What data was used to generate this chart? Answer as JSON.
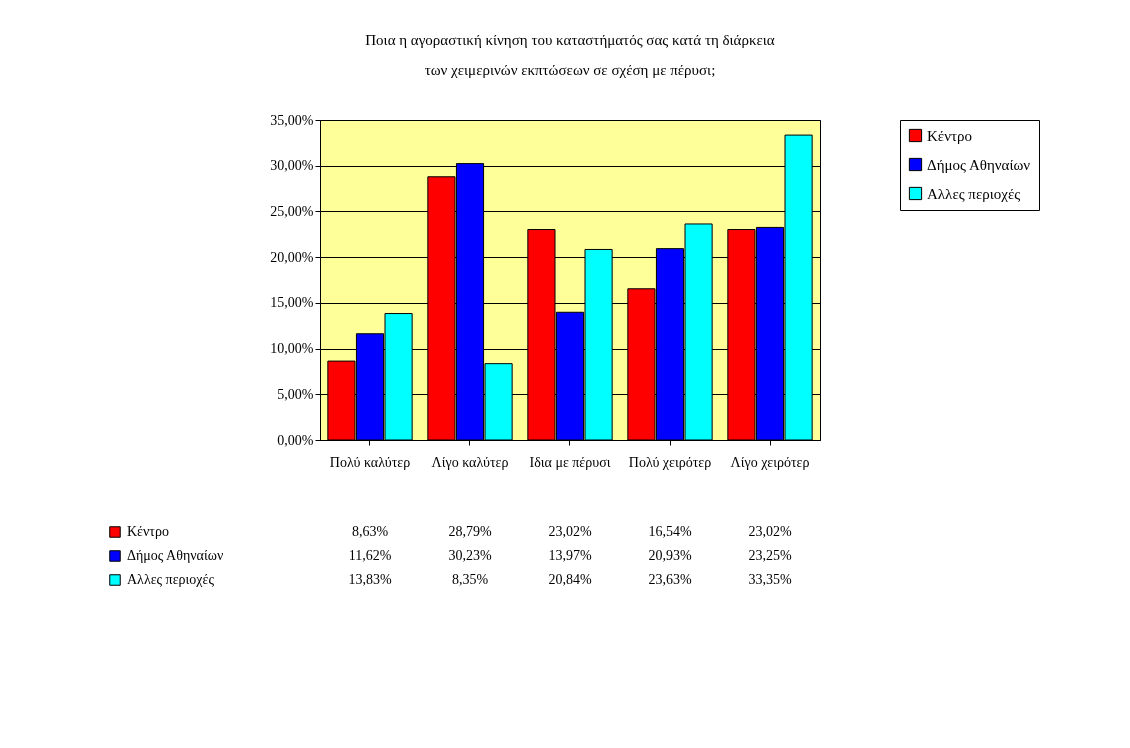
{
  "chart_data": {
    "type": "bar",
    "title": "Ποια η αγοραστική κίνηση του καταστήματός σας κατά τη διάρκεια των χειμερινών εκπτώσεων σε σχέση με πέρυσι;",
    "categories": [
      "Πολύ καλύτερ",
      "Λίγο καλύτερ",
      "Ιδια με πέρυσι",
      "Πολύ χειρότερ",
      "Λίγο χειρότερ"
    ],
    "series": [
      {
        "name": "Κέντρο",
        "color": "#ff0000",
        "values": [
          8.63,
          28.79,
          23.02,
          16.54,
          23.02
        ],
        "value_labels": [
          "8,63%",
          "28,79%",
          "23,02%",
          "16,54%",
          "23,02%"
        ]
      },
      {
        "name": "Δήμος Αθηναίων",
        "color": "#0000ff",
        "values": [
          11.62,
          30.23,
          13.97,
          20.93,
          23.25
        ],
        "value_labels": [
          "11,62%",
          "30,23%",
          "13,97%",
          "20,93%",
          "23,25%"
        ]
      },
      {
        "name": "Αλλες περιοχές",
        "color": "#00ffff",
        "values": [
          13.83,
          8.35,
          20.84,
          23.63,
          33.35
        ],
        "value_labels": [
          "13,83%",
          "8,35%",
          "20,84%",
          "23,63%",
          "33,35%"
        ]
      }
    ],
    "ylim": [
      0,
      35
    ],
    "yticks": [
      {
        "value": 0,
        "label": "0,00%"
      },
      {
        "value": 5,
        "label": "5,00%"
      },
      {
        "value": 10,
        "label": "10,00%"
      },
      {
        "value": 15,
        "label": "15,00%"
      },
      {
        "value": 20,
        "label": "20,00%"
      },
      {
        "value": 25,
        "label": "25,00%"
      },
      {
        "value": 30,
        "label": "30,00%"
      },
      {
        "value": 35,
        "label": "35,00%"
      }
    ],
    "grid": "y",
    "legend": "right"
  }
}
